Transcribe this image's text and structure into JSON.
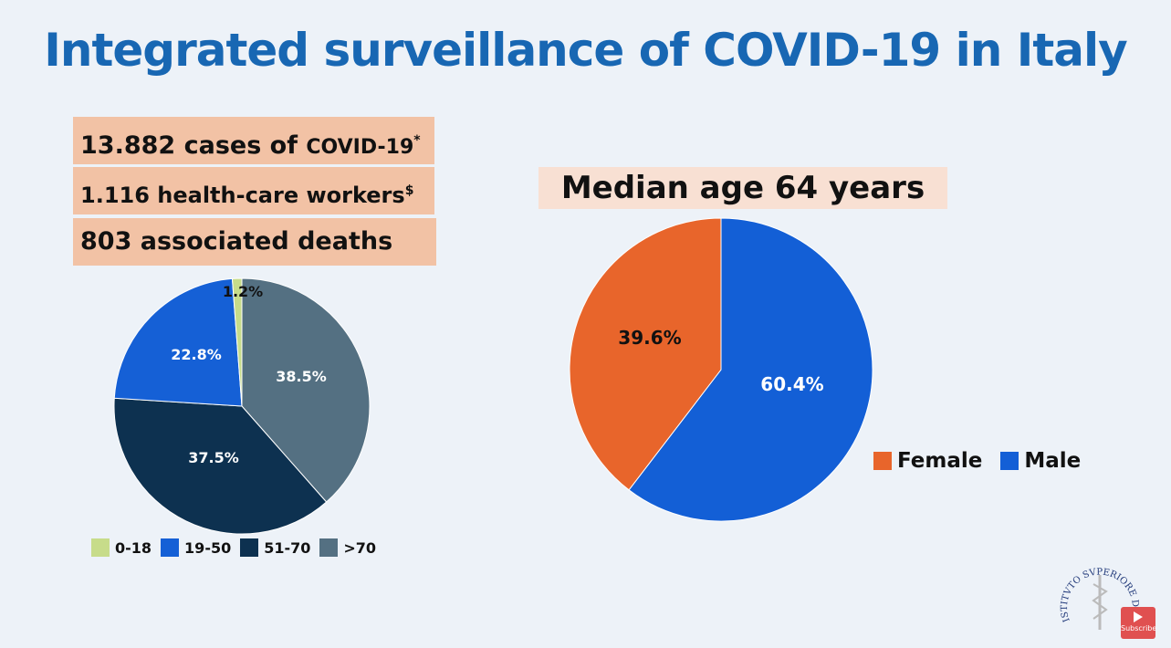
{
  "title": "Integrated surveillance of COVID-19 in Italy",
  "stats": [
    {
      "text": "13.882 cases of ",
      "small": "COVID-19",
      "mark": "*"
    },
    {
      "text": "1.116 health-care workers",
      "mark": "$"
    },
    {
      "text": "803 associated deaths"
    }
  ],
  "median_label": "Median age 64 years",
  "logo": {
    "text": "ISTITVTO SVPERIORE DI SANITA"
  },
  "youtube": {
    "label": "Subscribe"
  },
  "chart_data": [
    {
      "type": "pie",
      "categories": [
        "0-18",
        "19-50",
        "51-70",
        ">70"
      ],
      "values": [
        1.2,
        22.8,
        37.5,
        38.5
      ],
      "labels": [
        "1.2%",
        "22.8%",
        "37.5%",
        "38.5%"
      ],
      "colors": [
        "#c7dc8a",
        "#1560d6",
        "#0d3150",
        "#547082"
      ],
      "legend": "bottom"
    },
    {
      "type": "pie",
      "categories": [
        "Female",
        "Male"
      ],
      "values": [
        39.6,
        60.4
      ],
      "labels": [
        "39.6%",
        "60.4%"
      ],
      "colors": [
        "#e8652b",
        "#135fd6"
      ],
      "legend": "right"
    }
  ]
}
